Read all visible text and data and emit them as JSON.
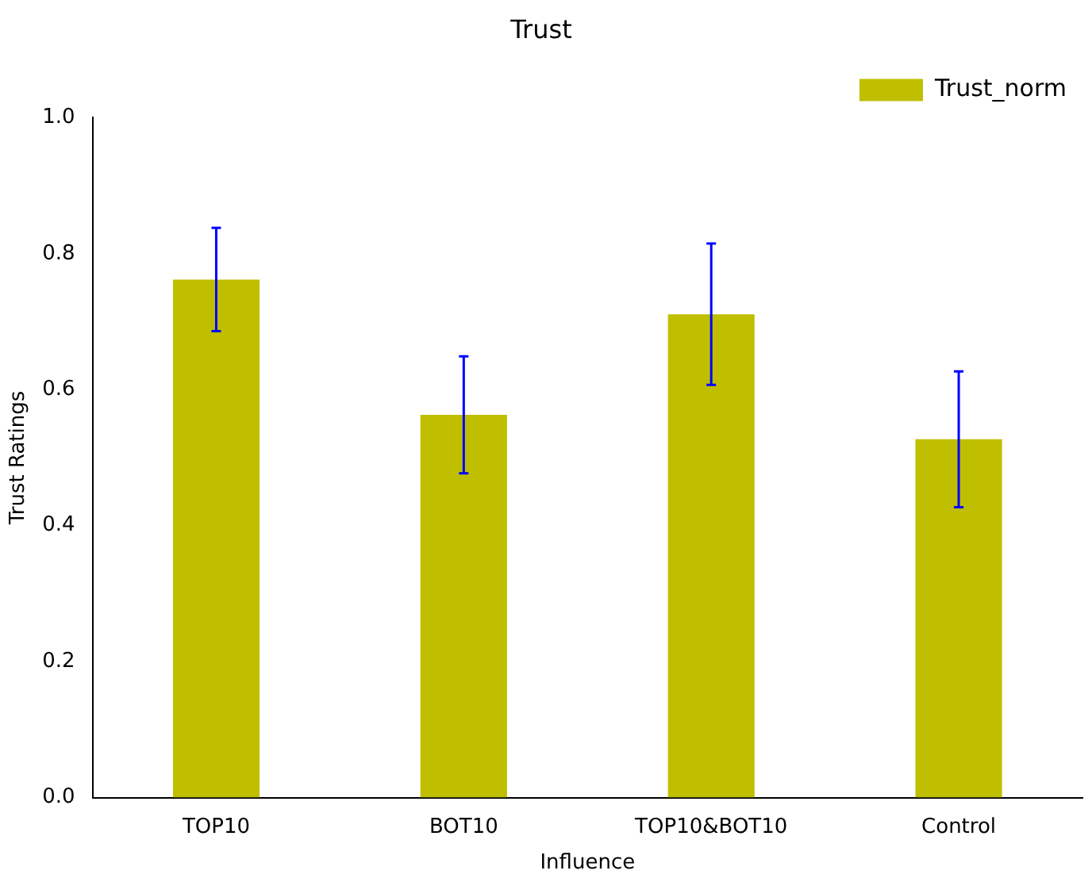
{
  "chart_data": {
    "type": "bar",
    "title": "Trust",
    "xlabel": "Influence",
    "ylabel": "Trust Ratings",
    "categories": [
      "TOP10",
      "BOT10",
      "TOP10&BOT10",
      "Control"
    ],
    "series": [
      {
        "name": "Trust_norm",
        "color": "#bfbf00",
        "values": [
          0.762,
          0.563,
          0.711,
          0.527
        ],
        "errors": [
          0.076,
          0.086,
          0.104,
          0.1
        ]
      }
    ],
    "ylim": [
      0,
      1
    ],
    "yticks": [
      {
        "value": 0,
        "label": "0.0"
      },
      0.2,
      0.4,
      0.6,
      0.8,
      {
        "value": 1,
        "label": "1.0"
      }
    ],
    "grid": false,
    "legend": "top right"
  }
}
